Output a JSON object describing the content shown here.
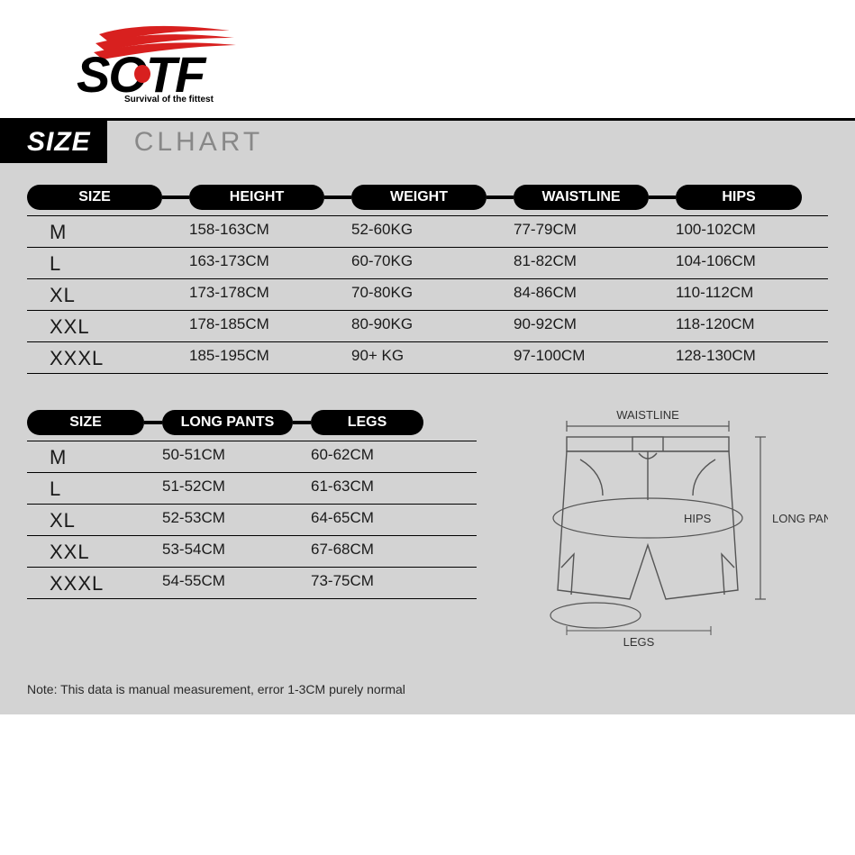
{
  "brand": {
    "name": "SOTF",
    "tagline": "Survival of the fittest",
    "accent_color": "#d8201f",
    "text_color": "#000000"
  },
  "title": {
    "label_black": "SIZE",
    "label_grey": "CLHART",
    "bar_bg": "#d3d3d3",
    "bar_border_top": "#000000"
  },
  "panel": {
    "bg": "#d3d3d3"
  },
  "table1": {
    "columns": [
      "SIZE",
      "HEIGHT",
      "WEIGHT",
      "WAISTLINE",
      "HIPS"
    ],
    "rows": [
      {
        "size": "M",
        "height": "158-163CM",
        "weight": "52-60KG",
        "waistline": "77-79CM",
        "hips": "100-102CM"
      },
      {
        "size": "L",
        "height": "163-173CM",
        "weight": "60-70KG",
        "waistline": "81-82CM",
        "hips": "104-106CM"
      },
      {
        "size": "XL",
        "height": "173-178CM",
        "weight": "70-80KG",
        "waistline": "84-86CM",
        "hips": "110-112CM"
      },
      {
        "size": "XXL",
        "height": "178-185CM",
        "weight": "80-90KG",
        "waistline": "90-92CM",
        "hips": "118-120CM"
      },
      {
        "size": "XXXL",
        "height": "185-195CM",
        "weight": "90+   KG",
        "waistline": "97-100CM",
        "hips": "128-130CM"
      }
    ]
  },
  "table2": {
    "columns": [
      "SIZE",
      "LONG PANTS",
      "LEGS"
    ],
    "rows": [
      {
        "size": "M",
        "long_pants": "50-51CM",
        "legs": "60-62CM"
      },
      {
        "size": "L",
        "long_pants": "51-52CM",
        "legs": "61-63CM"
      },
      {
        "size": "XL",
        "long_pants": "52-53CM",
        "legs": "64-65CM"
      },
      {
        "size": "XXL",
        "long_pants": "53-54CM",
        "legs": "67-68CM"
      },
      {
        "size": "XXXL",
        "long_pants": "54-55CM",
        "legs": "73-75CM"
      }
    ]
  },
  "diagram": {
    "labels": {
      "waistline": "WAISTLINE",
      "hips": "HIPS",
      "legs": "LEGS",
      "long_pants": "LONG PANTS"
    },
    "stroke": "#555555",
    "fill": "#d3d3d3"
  },
  "note": "Note: This data is manual measurement, error 1-3CM purely normal"
}
